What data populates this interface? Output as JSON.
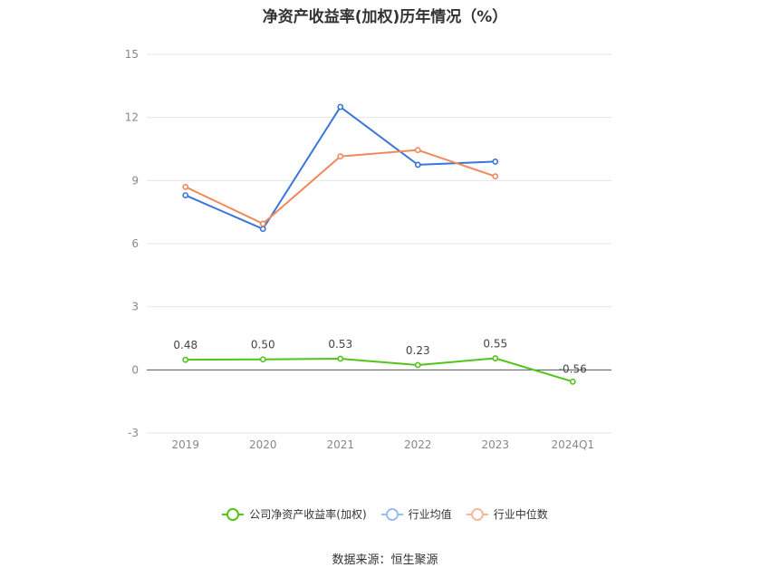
{
  "chart_data": {
    "type": "line",
    "title": "净资产收益率(加权)历年情况（%）",
    "categories": [
      "2019",
      "2020",
      "2021",
      "2022",
      "2023",
      "2024Q1"
    ],
    "ylim": [
      -3,
      15
    ],
    "yticks": [
      15,
      12,
      9,
      6,
      3,
      0,
      -3
    ],
    "grid": true,
    "legend_position": "bottom",
    "series": [
      {
        "name": "公司净资产收益率(加权)",
        "color": "#52c41a",
        "values": [
          0.48,
          0.5,
          0.53,
          0.23,
          0.55,
          -0.56
        ],
        "labels": [
          "0.48",
          "0.50",
          "0.53",
          "0.23",
          "0.55",
          "-0.56"
        ]
      },
      {
        "name": "行业均值",
        "color": "#3a75d8",
        "values": [
          8.3,
          6.7,
          12.5,
          9.75,
          9.9,
          null
        ]
      },
      {
        "name": "行业中位数",
        "color": "#f08a5d",
        "values": [
          8.7,
          6.95,
          10.15,
          10.45,
          9.2,
          null
        ]
      }
    ]
  },
  "source": "数据来源：恒生聚源"
}
